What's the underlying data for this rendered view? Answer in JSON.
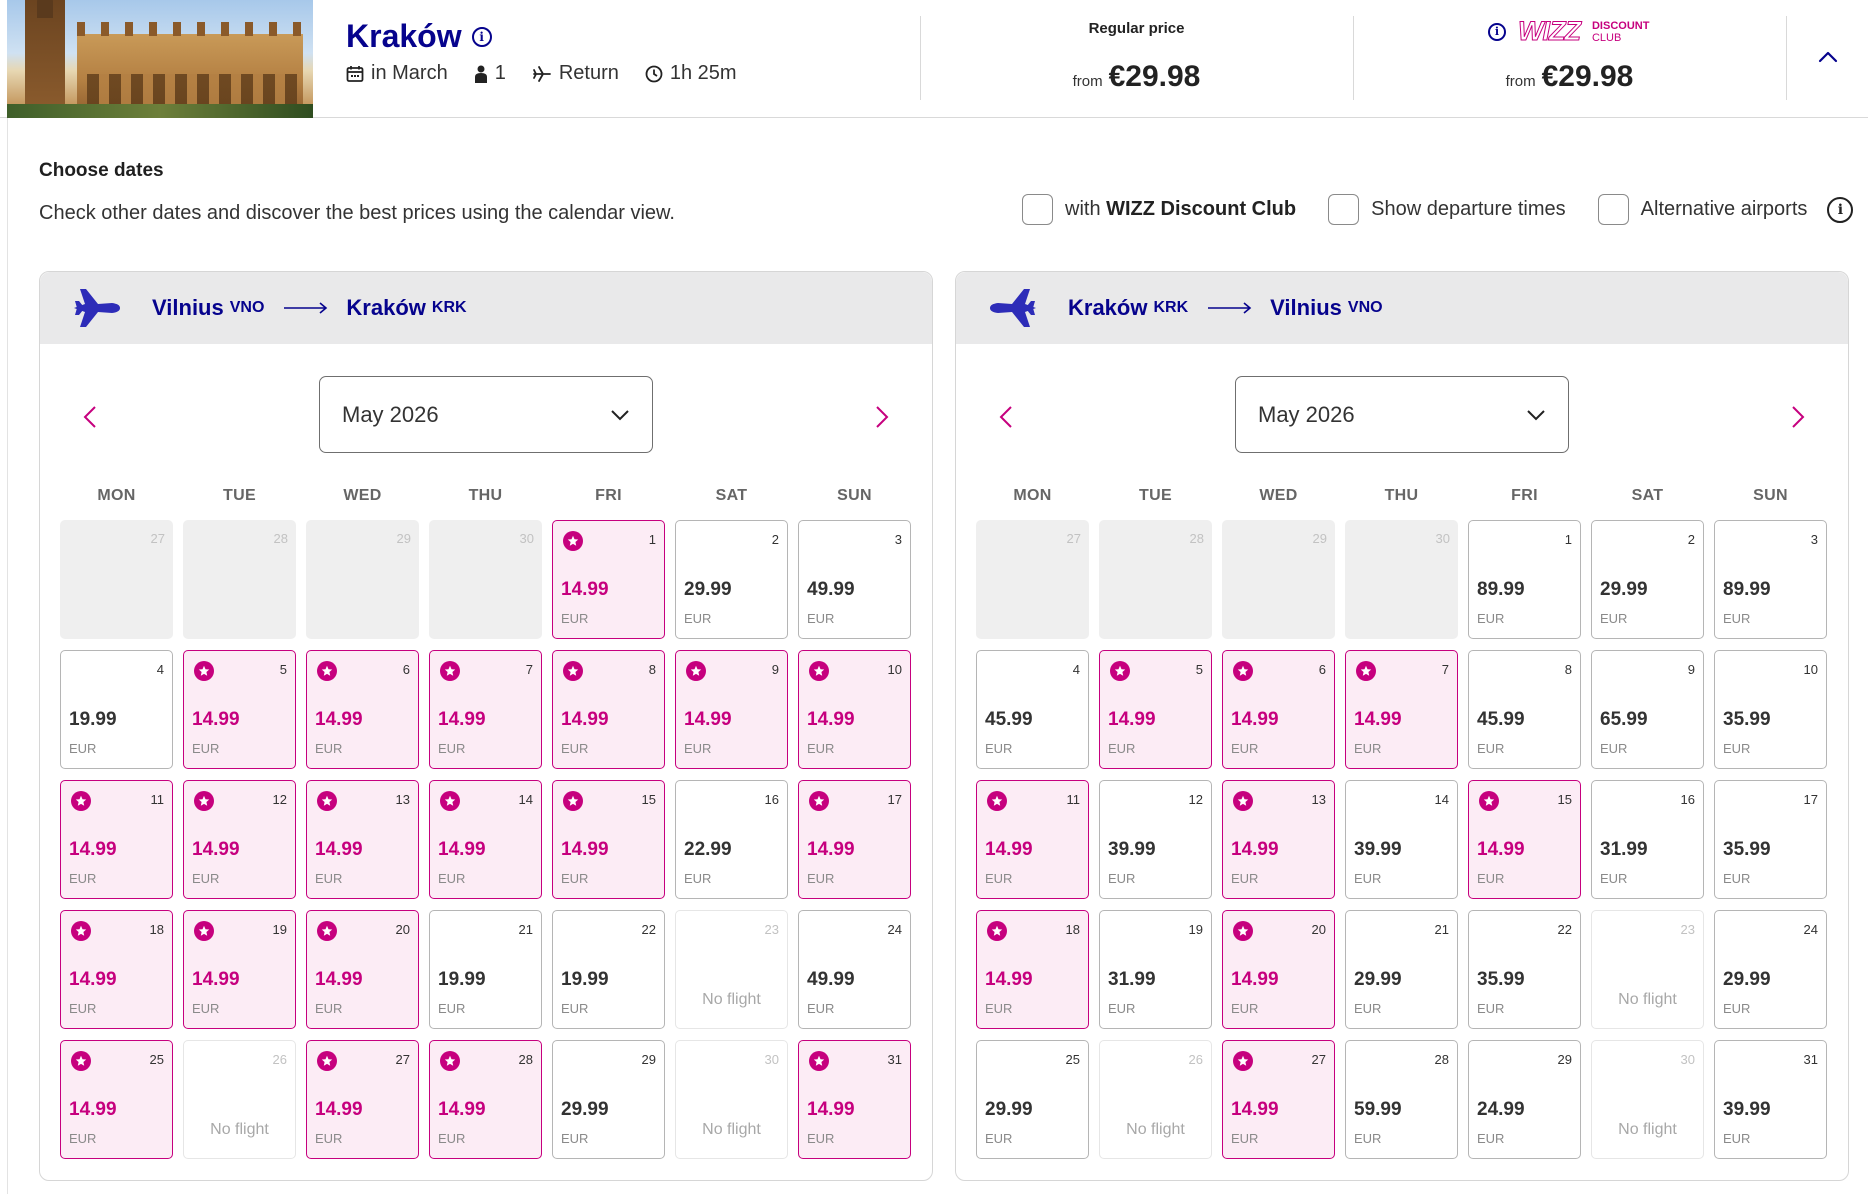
{
  "header": {
    "destination": "Kraków",
    "meta": {
      "when": "in March",
      "passengers": "1",
      "trip_type": "Return",
      "duration": "1h 25m"
    },
    "regular_price": {
      "label": "Regular price",
      "from": "from",
      "amount": "€29.98"
    },
    "discount_price": {
      "logo": "WIZZ",
      "badge_line1": "DISCOUNT",
      "badge_line2": "CLUB",
      "from": "from",
      "amount": "€29.98"
    },
    "icons": [
      "info-icon",
      "calendar-icon",
      "person-icon",
      "plane-icon",
      "clock-icon",
      "chevron-up-icon"
    ]
  },
  "choose": {
    "title": "Choose dates",
    "subtitle": "Check other dates and discover the best prices using the calendar view."
  },
  "options": {
    "discount_prefix": "with ",
    "discount_bold": "WIZZ Discount Club",
    "departure_times": "Show departure times",
    "alternative_airports": "Alternative airports"
  },
  "colors": {
    "brand_navy": "#06038d",
    "brand_magenta": "#c6007e",
    "promo_bg": "#fcecf5"
  },
  "weekdays": [
    "MON",
    "TUE",
    "WED",
    "THU",
    "FRI",
    "SAT",
    "SUN"
  ],
  "no_flight_label": "No flight",
  "currency": "EUR",
  "outbound": {
    "from_city": "Vilnius",
    "from_code": "VNO",
    "to_city": "Kraków",
    "to_code": "KRK",
    "month": "May 2026",
    "days": [
      {
        "d": "27",
        "state": "off"
      },
      {
        "d": "28",
        "state": "off"
      },
      {
        "d": "29",
        "state": "off"
      },
      {
        "d": "30",
        "state": "off"
      },
      {
        "d": "1",
        "price": "14.99",
        "promo": true
      },
      {
        "d": "2",
        "price": "29.99"
      },
      {
        "d": "3",
        "price": "49.99"
      },
      {
        "d": "4",
        "price": "19.99"
      },
      {
        "d": "5",
        "price": "14.99",
        "promo": true
      },
      {
        "d": "6",
        "price": "14.99",
        "promo": true
      },
      {
        "d": "7",
        "price": "14.99",
        "promo": true
      },
      {
        "d": "8",
        "price": "14.99",
        "promo": true
      },
      {
        "d": "9",
        "price": "14.99",
        "promo": true
      },
      {
        "d": "10",
        "price": "14.99",
        "promo": true
      },
      {
        "d": "11",
        "price": "14.99",
        "promo": true
      },
      {
        "d": "12",
        "price": "14.99",
        "promo": true
      },
      {
        "d": "13",
        "price": "14.99",
        "promo": true
      },
      {
        "d": "14",
        "price": "14.99",
        "promo": true
      },
      {
        "d": "15",
        "price": "14.99",
        "promo": true
      },
      {
        "d": "16",
        "price": "22.99"
      },
      {
        "d": "17",
        "price": "14.99",
        "promo": true
      },
      {
        "d": "18",
        "price": "14.99",
        "promo": true
      },
      {
        "d": "19",
        "price": "14.99",
        "promo": true
      },
      {
        "d": "20",
        "price": "14.99",
        "promo": true
      },
      {
        "d": "21",
        "price": "19.99"
      },
      {
        "d": "22",
        "price": "19.99"
      },
      {
        "d": "23",
        "state": "noflight"
      },
      {
        "d": "24",
        "price": "49.99"
      },
      {
        "d": "25",
        "price": "14.99",
        "promo": true
      },
      {
        "d": "26",
        "state": "noflight"
      },
      {
        "d": "27",
        "price": "14.99",
        "promo": true
      },
      {
        "d": "28",
        "price": "14.99",
        "promo": true
      },
      {
        "d": "29",
        "price": "29.99"
      },
      {
        "d": "30",
        "state": "noflight"
      },
      {
        "d": "31",
        "price": "14.99",
        "promo": true
      }
    ]
  },
  "inbound": {
    "from_city": "Kraków",
    "from_code": "KRK",
    "to_city": "Vilnius",
    "to_code": "VNO",
    "month": "May 2026",
    "days": [
      {
        "d": "27",
        "state": "off"
      },
      {
        "d": "28",
        "state": "off"
      },
      {
        "d": "29",
        "state": "off"
      },
      {
        "d": "30",
        "state": "off"
      },
      {
        "d": "1",
        "price": "89.99"
      },
      {
        "d": "2",
        "price": "29.99"
      },
      {
        "d": "3",
        "price": "89.99"
      },
      {
        "d": "4",
        "price": "45.99"
      },
      {
        "d": "5",
        "price": "14.99",
        "promo": true
      },
      {
        "d": "6",
        "price": "14.99",
        "promo": true
      },
      {
        "d": "7",
        "price": "14.99",
        "promo": true
      },
      {
        "d": "8",
        "price": "45.99"
      },
      {
        "d": "9",
        "price": "65.99"
      },
      {
        "d": "10",
        "price": "35.99"
      },
      {
        "d": "11",
        "price": "14.99",
        "promo": true
      },
      {
        "d": "12",
        "price": "39.99"
      },
      {
        "d": "13",
        "price": "14.99",
        "promo": true
      },
      {
        "d": "14",
        "price": "39.99"
      },
      {
        "d": "15",
        "price": "14.99",
        "promo": true
      },
      {
        "d": "16",
        "price": "31.99"
      },
      {
        "d": "17",
        "price": "35.99"
      },
      {
        "d": "18",
        "price": "14.99",
        "promo": true
      },
      {
        "d": "19",
        "price": "31.99"
      },
      {
        "d": "20",
        "price": "14.99",
        "promo": true
      },
      {
        "d": "21",
        "price": "29.99"
      },
      {
        "d": "22",
        "price": "35.99"
      },
      {
        "d": "23",
        "state": "noflight"
      },
      {
        "d": "24",
        "price": "29.99"
      },
      {
        "d": "25",
        "price": "29.99"
      },
      {
        "d": "26",
        "state": "noflight"
      },
      {
        "d": "27",
        "price": "14.99",
        "promo": true
      },
      {
        "d": "28",
        "price": "59.99"
      },
      {
        "d": "29",
        "price": "24.99"
      },
      {
        "d": "30",
        "state": "noflight"
      },
      {
        "d": "31",
        "price": "39.99"
      }
    ]
  }
}
